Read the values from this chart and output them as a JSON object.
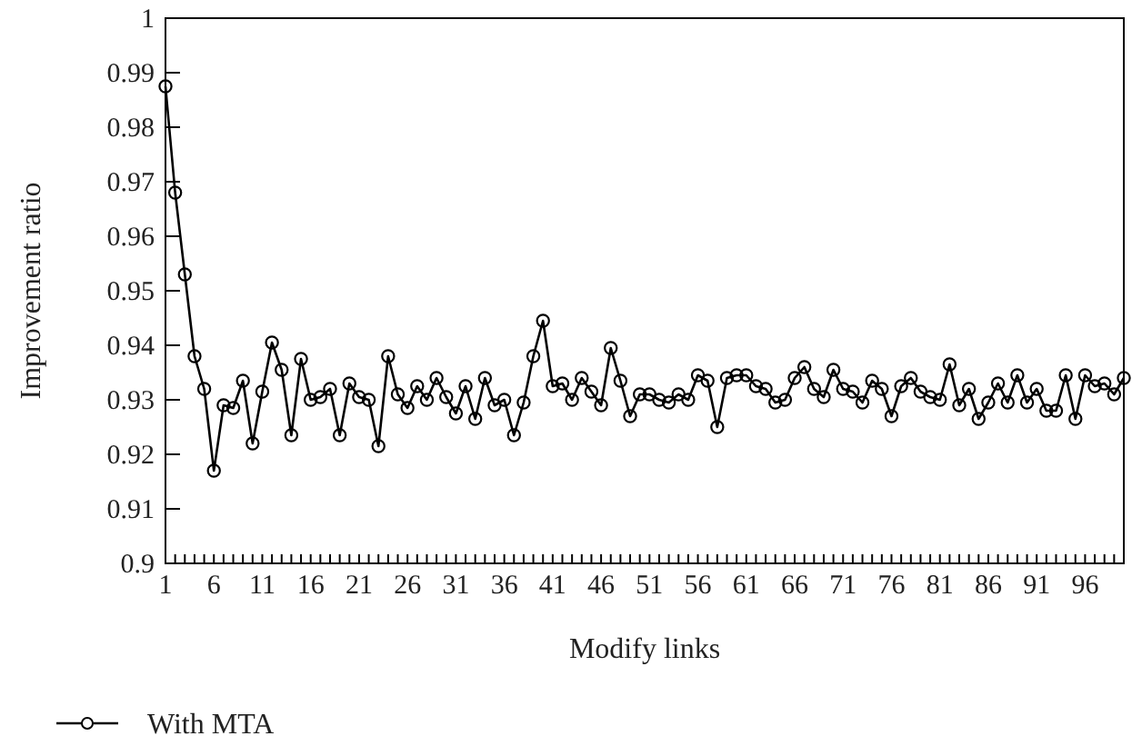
{
  "chart_data": {
    "type": "line",
    "xlabel": "Modify links",
    "ylabel": "Improvement ratio",
    "x": [
      1,
      2,
      3,
      4,
      5,
      6,
      7,
      8,
      9,
      10,
      11,
      12,
      13,
      14,
      15,
      16,
      17,
      18,
      19,
      20,
      21,
      22,
      23,
      24,
      25,
      26,
      27,
      28,
      29,
      30,
      31,
      32,
      33,
      34,
      35,
      36,
      37,
      38,
      39,
      40,
      41,
      42,
      43,
      44,
      45,
      46,
      47,
      48,
      49,
      50,
      51,
      52,
      53,
      54,
      55,
      56,
      57,
      58,
      59,
      60,
      61,
      62,
      63,
      64,
      65,
      66,
      67,
      68,
      69,
      70,
      71,
      72,
      73,
      74,
      75,
      76,
      77,
      78,
      79,
      80,
      81,
      82,
      83,
      84,
      85,
      86,
      87,
      88,
      89,
      90,
      91,
      92,
      93,
      94,
      95,
      96,
      97,
      98,
      99,
      100
    ],
    "series": [
      {
        "name": "With MTA",
        "color": "#000000",
        "values": [
          0.9875,
          0.968,
          0.953,
          0.938,
          0.932,
          0.917,
          0.929,
          0.9285,
          0.9335,
          0.922,
          0.9315,
          0.9405,
          0.9355,
          0.9235,
          0.9375,
          0.93,
          0.9305,
          0.932,
          0.9235,
          0.933,
          0.9305,
          0.93,
          0.9215,
          0.938,
          0.931,
          0.9285,
          0.9325,
          0.93,
          0.934,
          0.9305,
          0.9275,
          0.9325,
          0.9265,
          0.934,
          0.929,
          0.93,
          0.9235,
          0.9295,
          0.938,
          0.9445,
          0.9325,
          0.933,
          0.93,
          0.934,
          0.9315,
          0.929,
          0.9395,
          0.9335,
          0.927,
          0.931,
          0.931,
          0.93,
          0.9295,
          0.931,
          0.93,
          0.9345,
          0.9335,
          0.925,
          0.934,
          0.9345,
          0.9345,
          0.9325,
          0.932,
          0.9295,
          0.93,
          0.934,
          0.936,
          0.932,
          0.9305,
          0.9355,
          0.932,
          0.9315,
          0.9295,
          0.9335,
          0.932,
          0.927,
          0.9325,
          0.934,
          0.9315,
          0.9305,
          0.93,
          0.9365,
          0.929,
          0.932,
          0.9265,
          0.9295,
          0.933,
          0.9295,
          0.9345,
          0.9295,
          0.932,
          0.928,
          0.928,
          0.9345,
          0.9265,
          0.9345,
          0.9325,
          0.933,
          0.931,
          0.934
        ]
      }
    ],
    "xlim": [
      1,
      100
    ],
    "xticks": [
      1,
      {
        "value": 2,
        "label": null
      },
      {
        "value": 3,
        "label": null
      },
      {
        "value": 4,
        "label": null
      },
      {
        "value": 5,
        "label": null
      },
      6,
      {
        "value": 7,
        "label": null
      },
      {
        "value": 8,
        "label": null
      },
      {
        "value": 9,
        "label": null
      },
      {
        "value": 10,
        "label": null
      },
      11,
      {
        "value": 12,
        "label": null
      },
      {
        "value": 13,
        "label": null
      },
      {
        "value": 14,
        "label": null
      },
      {
        "value": 15,
        "label": null
      },
      16,
      {
        "value": 17,
        "label": null
      },
      {
        "value": 18,
        "label": null
      },
      {
        "value": 19,
        "label": null
      },
      {
        "value": 20,
        "label": null
      },
      21,
      {
        "value": 22,
        "label": null
      },
      {
        "value": 23,
        "label": null
      },
      {
        "value": 24,
        "label": null
      },
      {
        "value": 25,
        "label": null
      },
      26,
      {
        "value": 27,
        "label": null
      },
      {
        "value": 28,
        "label": null
      },
      {
        "value": 29,
        "label": null
      },
      {
        "value": 30,
        "label": null
      },
      31,
      {
        "value": 32,
        "label": null
      },
      {
        "value": 33,
        "label": null
      },
      {
        "value": 34,
        "label": null
      },
      {
        "value": 35,
        "label": null
      },
      36,
      {
        "value": 37,
        "label": null
      },
      {
        "value": 38,
        "label": null
      },
      {
        "value": 39,
        "label": null
      },
      {
        "value": 40,
        "label": null
      },
      41,
      {
        "value": 42,
        "label": null
      },
      {
        "value": 43,
        "label": null
      },
      {
        "value": 44,
        "label": null
      },
      {
        "value": 45,
        "label": null
      },
      46,
      {
        "value": 47,
        "label": null
      },
      {
        "value": 48,
        "label": null
      },
      {
        "value": 49,
        "label": null
      },
      {
        "value": 50,
        "label": null
      },
      51,
      {
        "value": 52,
        "label": null
      },
      {
        "value": 53,
        "label": null
      },
      {
        "value": 54,
        "label": null
      },
      {
        "value": 55,
        "label": null
      },
      56,
      {
        "value": 57,
        "label": null
      },
      {
        "value": 58,
        "label": null
      },
      {
        "value": 59,
        "label": null
      },
      {
        "value": 60,
        "label": null
      },
      61,
      {
        "value": 62,
        "label": null
      },
      {
        "value": 63,
        "label": null
      },
      {
        "value": 64,
        "label": null
      },
      {
        "value": 65,
        "label": null
      },
      66,
      {
        "value": 67,
        "label": null
      },
      {
        "value": 68,
        "label": null
      },
      {
        "value": 69,
        "label": null
      },
      {
        "value": 70,
        "label": null
      },
      71,
      {
        "value": 72,
        "label": null
      },
      {
        "value": 73,
        "label": null
      },
      {
        "value": 74,
        "label": null
      },
      {
        "value": 75,
        "label": null
      },
      76,
      {
        "value": 77,
        "label": null
      },
      {
        "value": 78,
        "label": null
      },
      {
        "value": 79,
        "label": null
      },
      {
        "value": 80,
        "label": null
      },
      81,
      {
        "value": 82,
        "label": null
      },
      {
        "value": 83,
        "label": null
      },
      {
        "value": 84,
        "label": null
      },
      {
        "value": 85,
        "label": null
      },
      86,
      {
        "value": 87,
        "label": null
      },
      {
        "value": 88,
        "label": null
      },
      {
        "value": 89,
        "label": null
      },
      {
        "value": 90,
        "label": null
      },
      91,
      {
        "value": 92,
        "label": null
      },
      {
        "value": 93,
        "label": null
      },
      {
        "value": 94,
        "label": null
      },
      {
        "value": 95,
        "label": null
      },
      96,
      {
        "value": 97,
        "label": null
      },
      {
        "value": 98,
        "label": null
      },
      {
        "value": 99,
        "label": null
      },
      {
        "value": 100,
        "label": null
      }
    ],
    "ylim": [
      0.9,
      1
    ],
    "yticks": [
      0.9,
      0.91,
      0.92,
      0.93,
      0.94,
      0.95,
      0.96,
      0.97,
      0.98,
      0.99,
      1
    ],
    "grid": false,
    "legend": "bottom",
    "marker": "circle",
    "line_style": "solid"
  }
}
